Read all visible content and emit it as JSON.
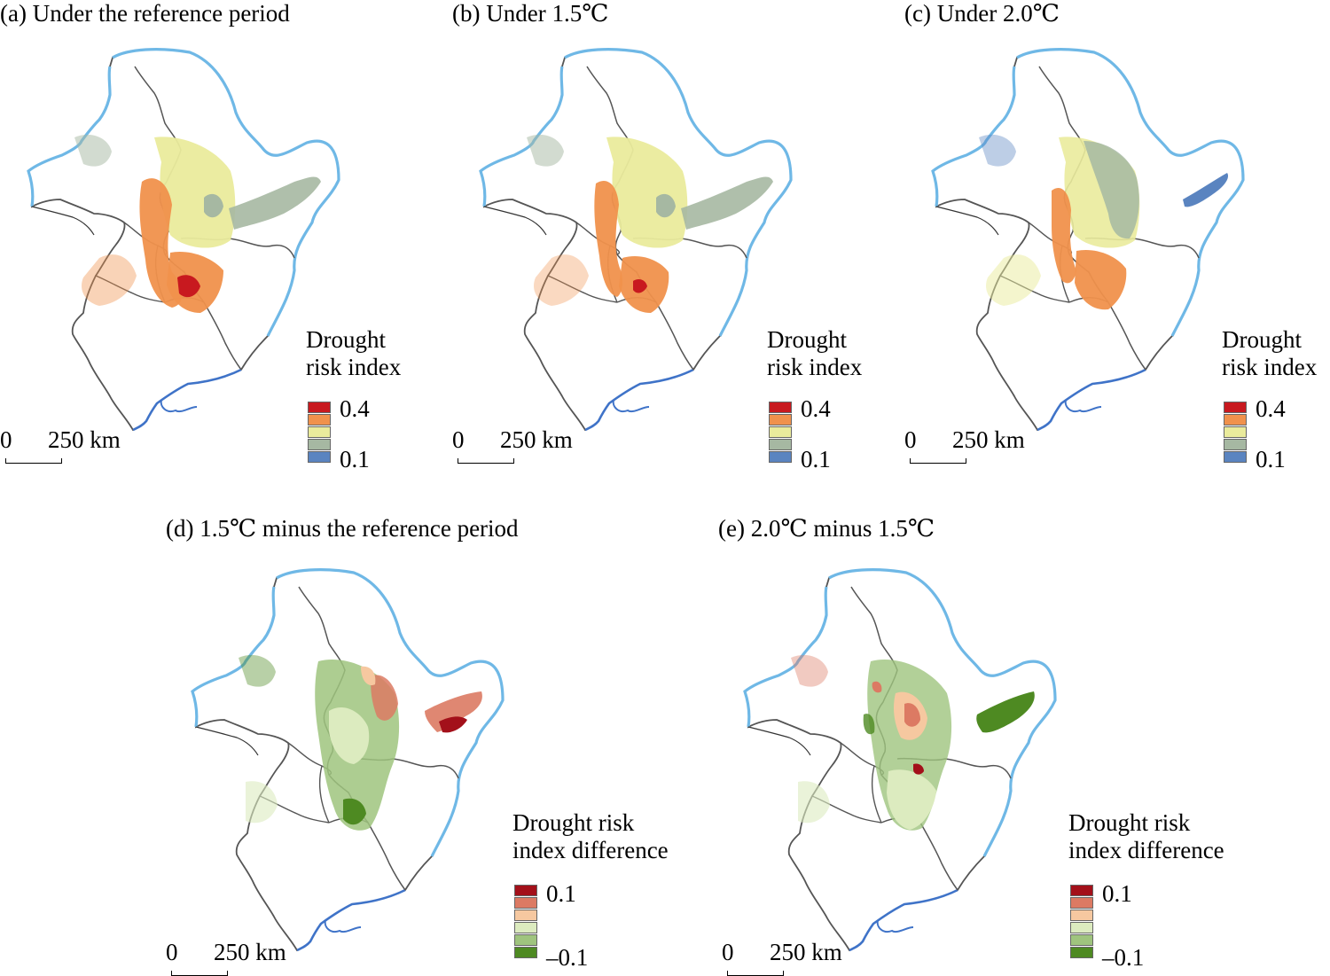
{
  "panels": [
    {
      "title": "(a) Under the reference period",
      "legend_title": [
        "Drought",
        "risk index"
      ],
      "max": "0.4",
      "min": "0.1",
      "colors": [
        "#c8191f",
        "#f0914c",
        "#eaeb9c",
        "#a6b8a2",
        "#5a84c0"
      ],
      "scale": {
        "zero": "0",
        "length": "250 km"
      }
    },
    {
      "title": "(b) Under 1.5℃",
      "legend_title": [
        "Drought",
        "risk index"
      ],
      "max": "0.4",
      "min": "0.1",
      "colors": [
        "#c8191f",
        "#f0914c",
        "#eaeb9c",
        "#a6b8a2",
        "#5a84c0"
      ],
      "scale": {
        "zero": "0",
        "length": "250 km"
      }
    },
    {
      "title": "(c) Under 2.0℃",
      "legend_title": [
        "Drought",
        "risk index"
      ],
      "max": "0.4",
      "min": "0.1",
      "colors": [
        "#c8191f",
        "#f0914c",
        "#eaeb9c",
        "#a6b8a2",
        "#5a84c0"
      ],
      "scale": {
        "zero": "0",
        "length": "250 km"
      }
    },
    {
      "title": "(d) 1.5℃ minus the reference period",
      "legend_title": [
        "Drought risk",
        "index difference"
      ],
      "max": "0.1",
      "min": "–0.1",
      "colors": [
        "#a3101a",
        "#dc7a63",
        "#f6c8a0",
        "#dcebbf",
        "#9fc47e",
        "#4e8a22"
      ],
      "scale": {
        "zero": "0",
        "length": "250 km"
      }
    },
    {
      "title": "(e) 2.0℃ minus 1.5℃",
      "legend_title": [
        "Drought risk",
        "index difference"
      ],
      "max": "0.1",
      "min": "–0.1",
      "colors": [
        "#a3101a",
        "#dc7a63",
        "#f6c8a0",
        "#dcebbf",
        "#9fc47e",
        "#4e8a22"
      ],
      "scale": {
        "zero": "0",
        "length": "250 km"
      }
    }
  ],
  "map_colors": {
    "north_border": "#6fb8e6",
    "coast": "#3f73c8",
    "province_lines": "#555555"
  }
}
